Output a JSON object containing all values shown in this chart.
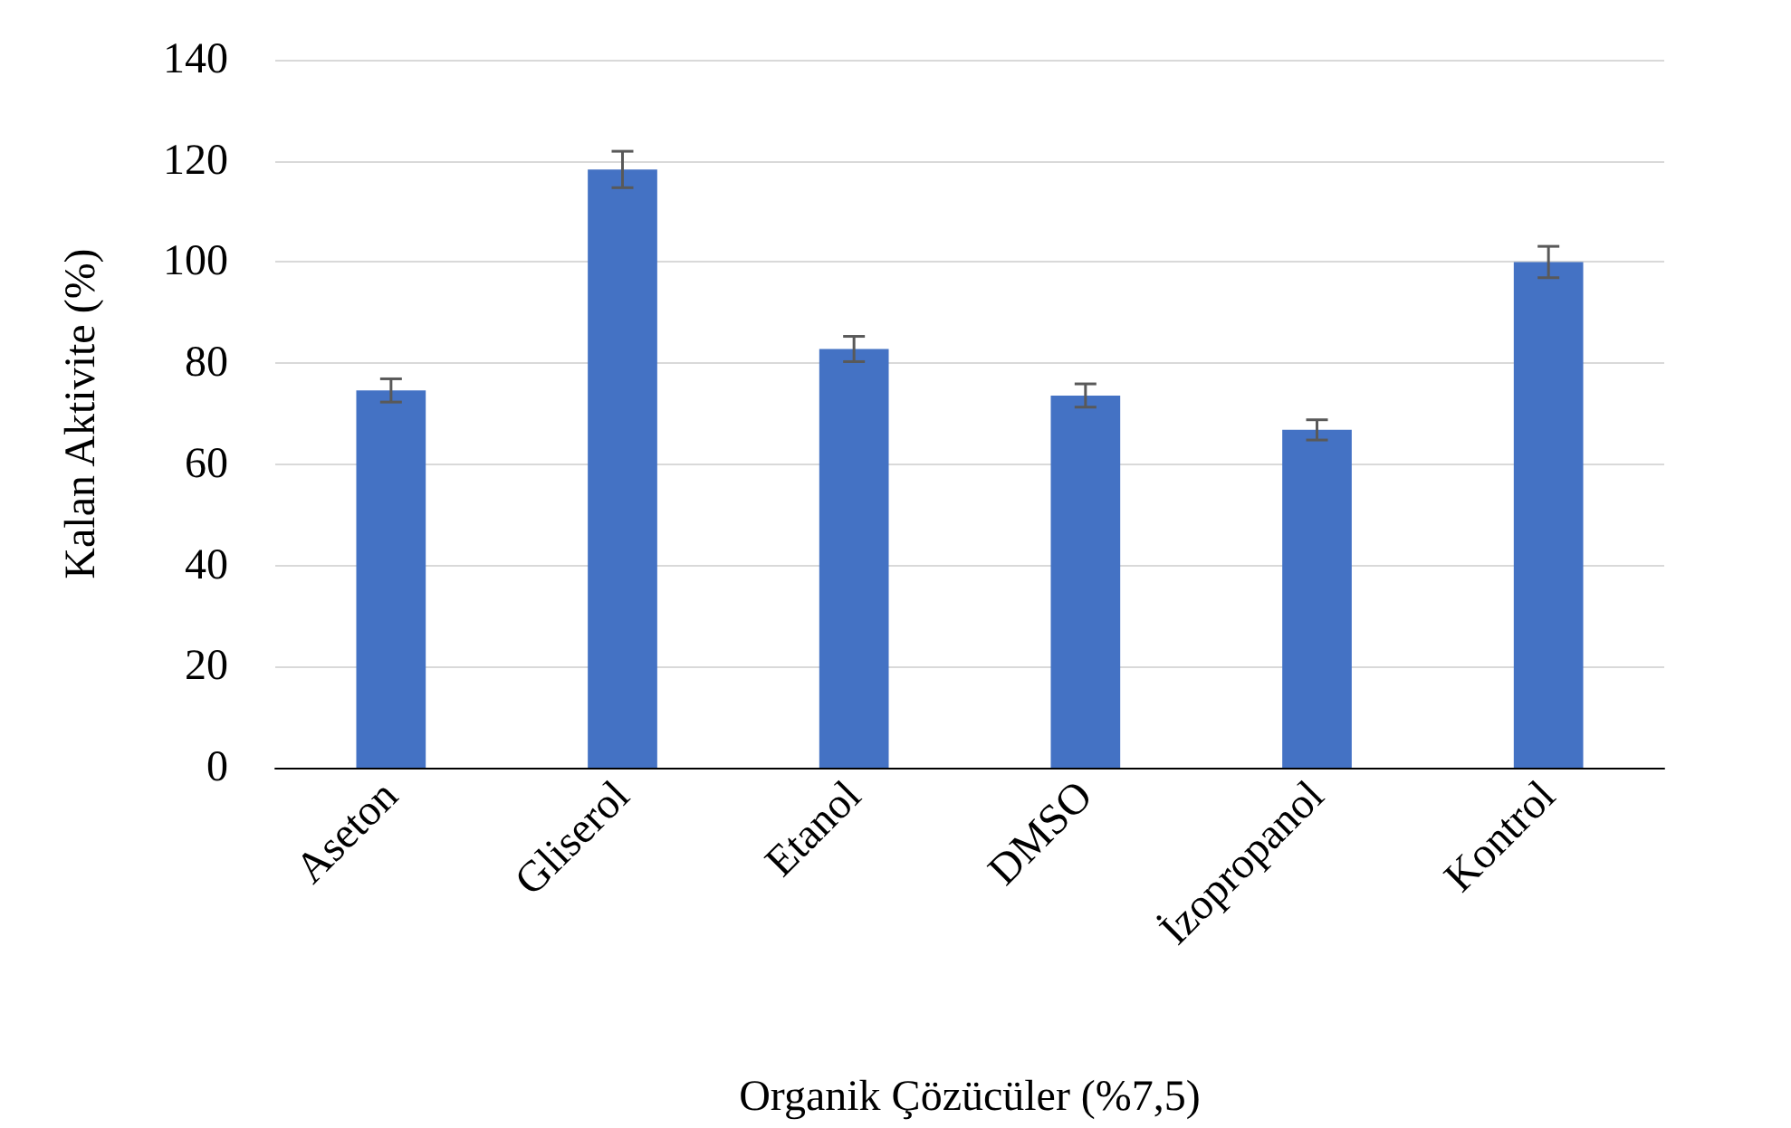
{
  "chart_data": {
    "type": "bar",
    "xlabel": "Organik Çözücüler (%7,5)",
    "ylabel": "Kalan Aktivite (%)",
    "categories": [
      "Aseton",
      "Gliserol",
      "Etanol",
      "DMSO",
      "İzopropanol",
      "Kontrol"
    ],
    "values": [
      74.6,
      118.3,
      82.8,
      73.6,
      66.8,
      100
    ],
    "errors": [
      2.3,
      3.6,
      2.5,
      2.3,
      2,
      3.1
    ],
    "color": "#4472c4",
    "ylim": [
      0,
      140
    ],
    "yticks": [
      0,
      20,
      40,
      60,
      80,
      100,
      120,
      140
    ],
    "grid": "y"
  }
}
